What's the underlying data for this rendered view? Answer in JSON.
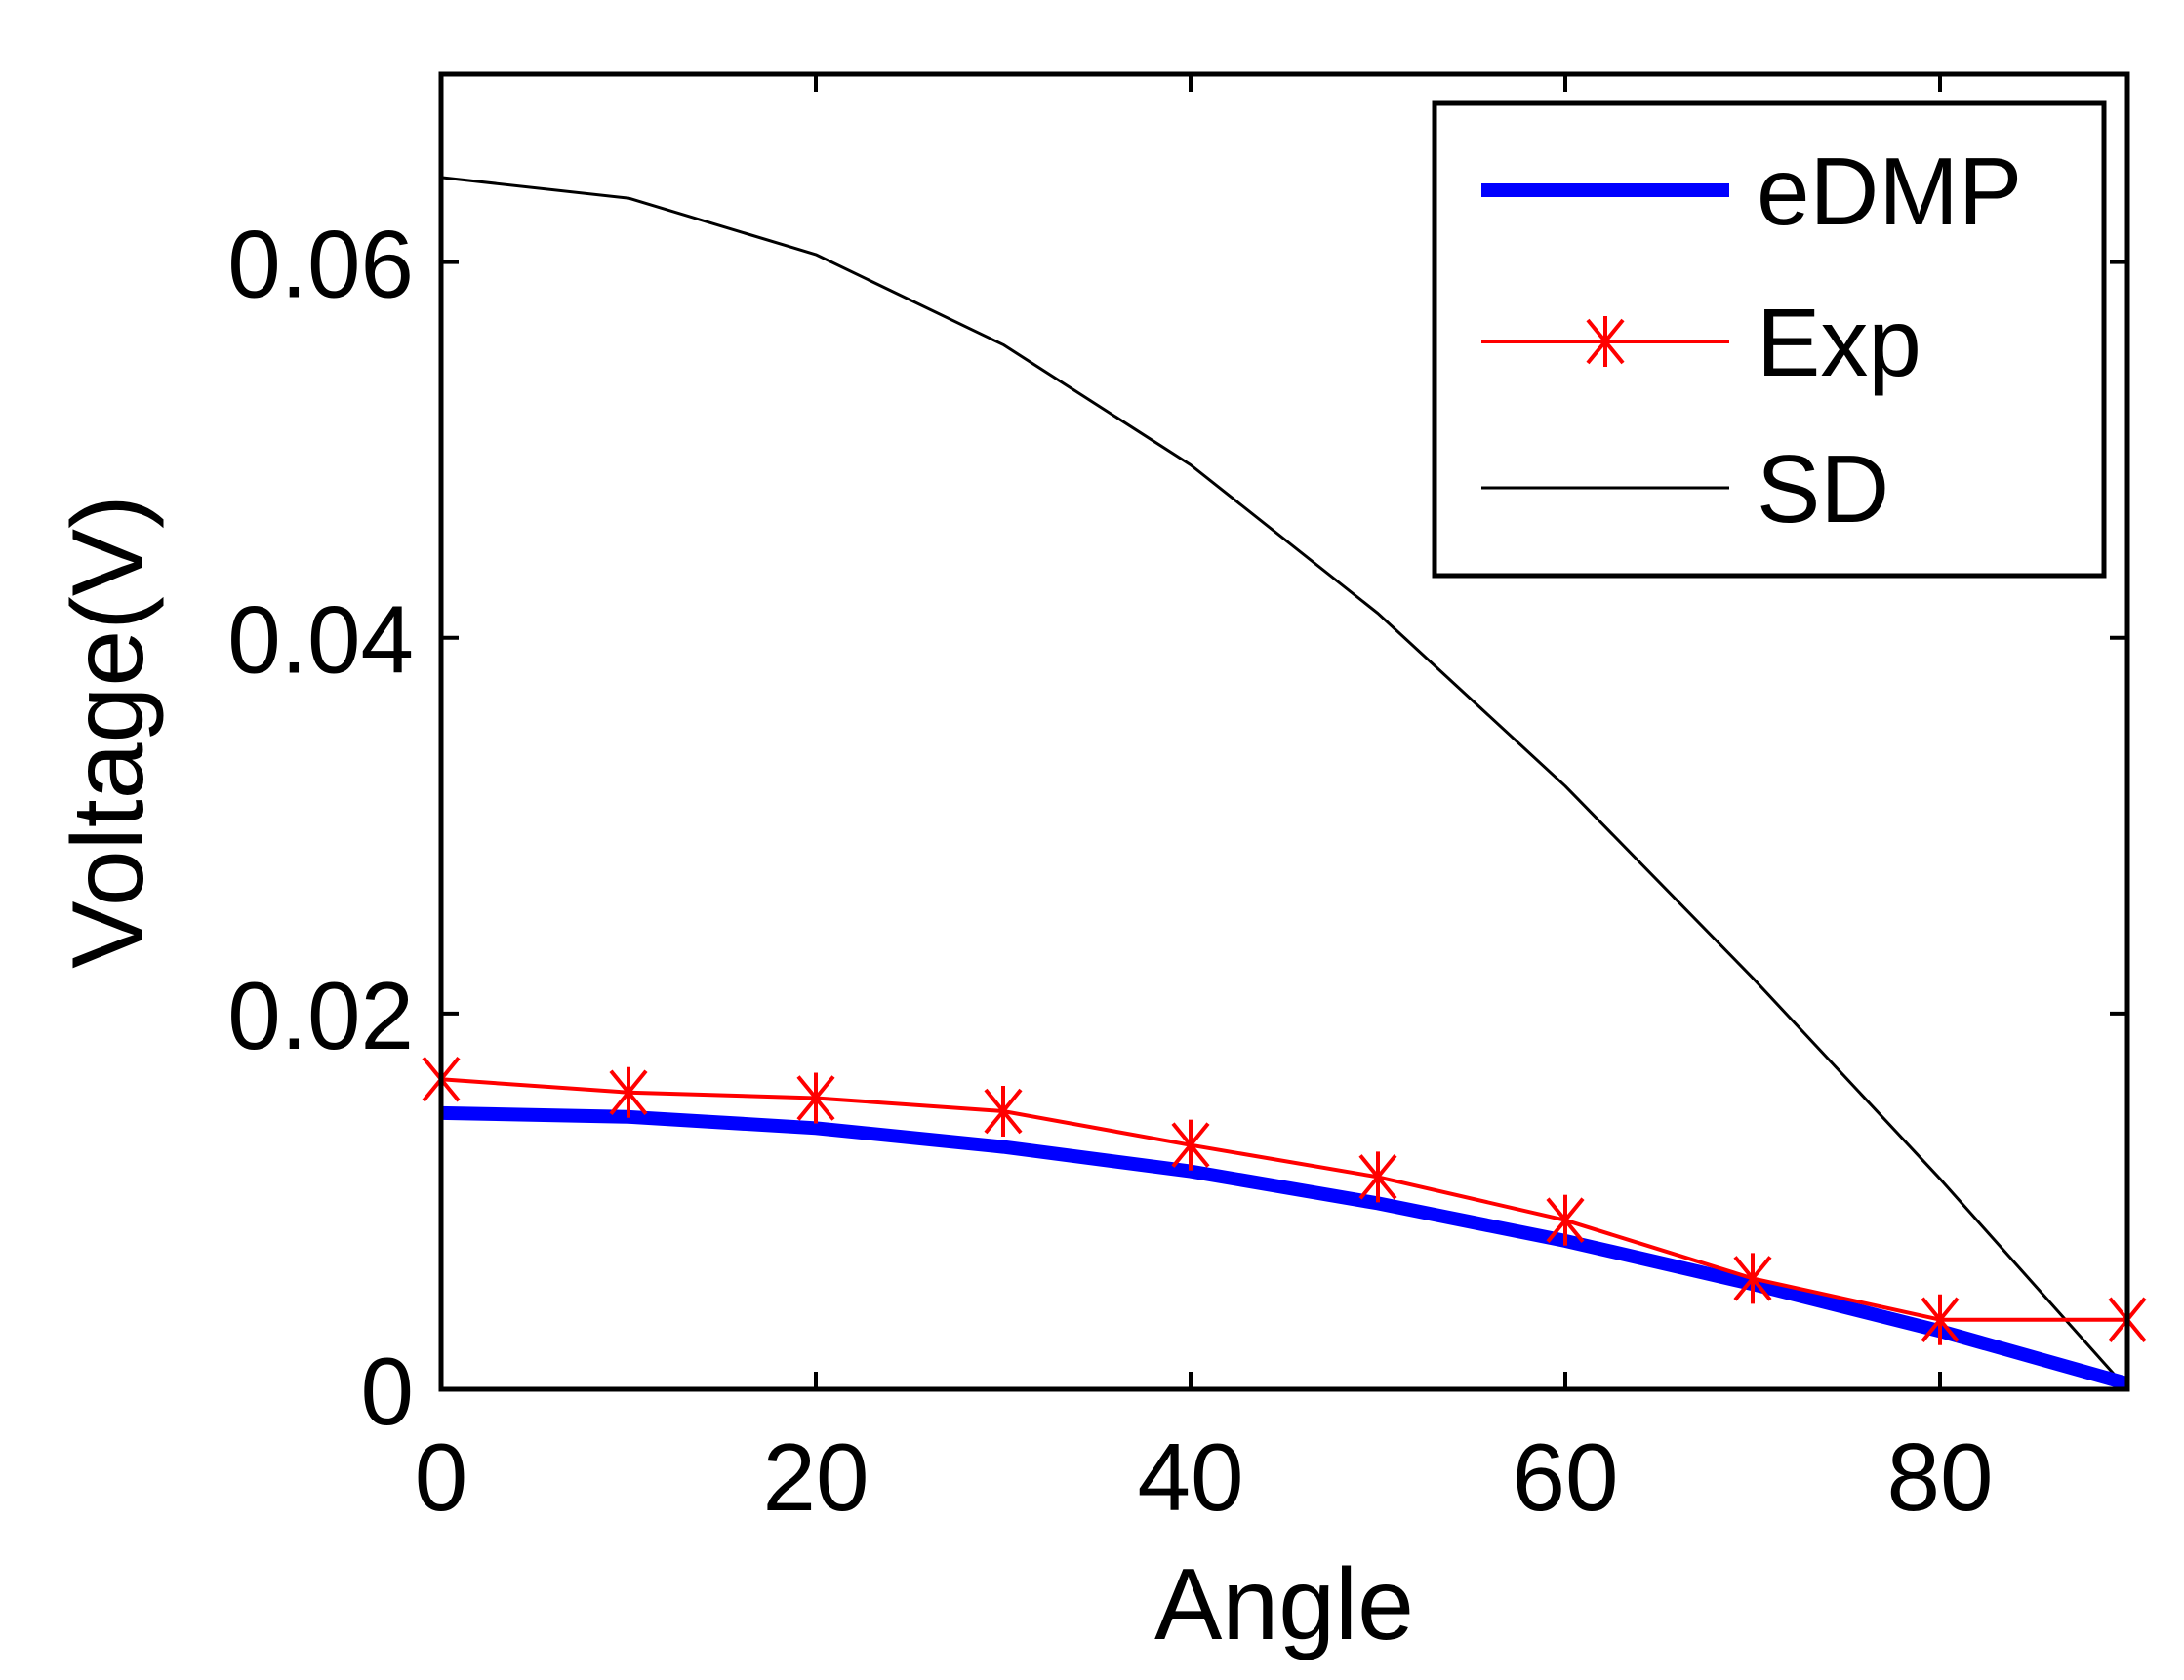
{
  "chart_data": {
    "type": "line",
    "title": "",
    "xlabel": "Angle",
    "ylabel": "Voltage(V)",
    "xlim": [
      0,
      90
    ],
    "ylim": [
      0,
      0.07
    ],
    "grid": false,
    "legend_position": "top-right",
    "x_ticks": [
      0,
      20,
      40,
      60,
      80
    ],
    "x_tick_labels": [
      "0",
      "20",
      "40",
      "60",
      "80"
    ],
    "y_ticks": [
      0,
      0.02,
      0.04,
      0.06
    ],
    "y_tick_labels": [
      "0",
      "0.02",
      "0.04",
      "0.06"
    ],
    "series": [
      {
        "name": "eDMP",
        "color": "#0000ff",
        "style": "thick-line",
        "x": [
          0,
          10,
          20,
          30,
          40,
          50,
          60,
          70,
          80,
          90
        ],
        "y": [
          0.0147,
          0.0145,
          0.0139,
          0.0129,
          0.0116,
          0.0099,
          0.0079,
          0.0056,
          0.0031,
          0.0003
        ]
      },
      {
        "name": "Exp",
        "color": "#ff0000",
        "style": "line-x-marker",
        "x": [
          0,
          10,
          20,
          30,
          40,
          50,
          60,
          70,
          80,
          90
        ],
        "y": [
          0.0165,
          0.0158,
          0.0155,
          0.0148,
          0.013,
          0.0113,
          0.009,
          0.0059,
          0.0037,
          0.0037
        ]
      },
      {
        "name": "SD",
        "color": "#000000",
        "style": "thin-line",
        "x": [
          0,
          10,
          20,
          30,
          40,
          50,
          60,
          70,
          80,
          90
        ],
        "y": [
          0.0645,
          0.0634,
          0.0604,
          0.0556,
          0.0492,
          0.0413,
          0.0321,
          0.0219,
          0.0112,
          0.0
        ]
      }
    ]
  }
}
